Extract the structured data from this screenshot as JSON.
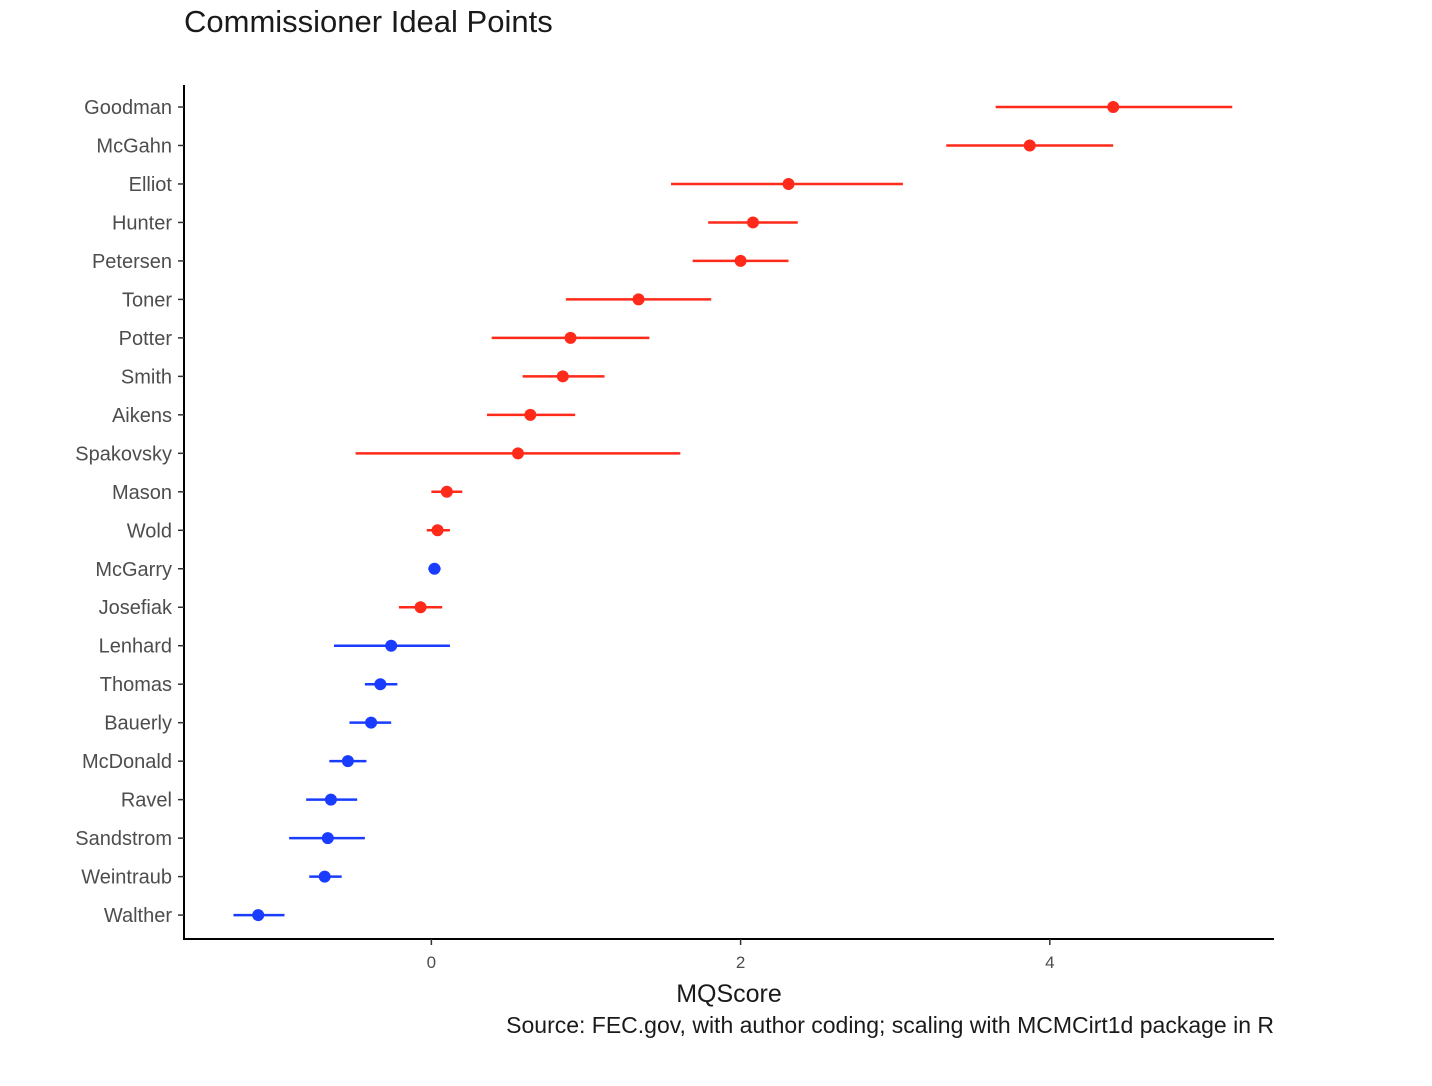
{
  "chart_data": {
    "type": "scatter",
    "title": "Commissioner Ideal Points",
    "xlabel": "MQScore",
    "ylabel": "",
    "caption": "Source: FEC.gov, with author coding; scaling with MCMCirt1d package in R",
    "xlim": [
      -1.6,
      5.45
    ],
    "xticks": [
      0,
      2,
      4
    ],
    "grid": false,
    "legend": "none",
    "colors": {
      "red": "#ff2a1a",
      "blue": "#1a3cff"
    },
    "points": [
      {
        "name": "Goodman",
        "mean": 4.41,
        "low": 3.65,
        "high": 5.18,
        "color": "red"
      },
      {
        "name": "McGahn",
        "mean": 3.87,
        "low": 3.33,
        "high": 4.41,
        "color": "red"
      },
      {
        "name": "Elliot",
        "mean": 2.31,
        "low": 1.55,
        "high": 3.05,
        "color": "red"
      },
      {
        "name": "Hunter",
        "mean": 2.08,
        "low": 1.79,
        "high": 2.37,
        "color": "red"
      },
      {
        "name": "Petersen",
        "mean": 2.0,
        "low": 1.69,
        "high": 2.31,
        "color": "red"
      },
      {
        "name": "Toner",
        "mean": 1.34,
        "low": 0.87,
        "high": 1.81,
        "color": "red"
      },
      {
        "name": "Potter",
        "mean": 0.9,
        "low": 0.39,
        "high": 1.41,
        "color": "red"
      },
      {
        "name": "Smith",
        "mean": 0.85,
        "low": 0.59,
        "high": 1.12,
        "color": "red"
      },
      {
        "name": "Aikens",
        "mean": 0.64,
        "low": 0.36,
        "high": 0.93,
        "color": "red"
      },
      {
        "name": "Spakovsky",
        "mean": 0.56,
        "low": -0.49,
        "high": 1.61,
        "color": "red"
      },
      {
        "name": "Mason",
        "mean": 0.1,
        "low": 0.0,
        "high": 0.2,
        "color": "red"
      },
      {
        "name": "Wold",
        "mean": 0.04,
        "low": -0.03,
        "high": 0.12,
        "color": "red"
      },
      {
        "name": "McGarry",
        "mean": 0.02,
        "low": -0.02,
        "high": 0.06,
        "color": "blue"
      },
      {
        "name": "Josefiak",
        "mean": -0.07,
        "low": -0.21,
        "high": 0.07,
        "color": "red"
      },
      {
        "name": "Lenhard",
        "mean": -0.26,
        "low": -0.63,
        "high": 0.12,
        "color": "blue"
      },
      {
        "name": "Thomas",
        "mean": -0.33,
        "low": -0.43,
        "high": -0.22,
        "color": "blue"
      },
      {
        "name": "Bauerly",
        "mean": -0.39,
        "low": -0.53,
        "high": -0.26,
        "color": "blue"
      },
      {
        "name": "McDonald",
        "mean": -0.54,
        "low": -0.66,
        "high": -0.42,
        "color": "blue"
      },
      {
        "name": "Ravel",
        "mean": -0.65,
        "low": -0.81,
        "high": -0.48,
        "color": "blue"
      },
      {
        "name": "Sandstrom",
        "mean": -0.67,
        "low": -0.92,
        "high": -0.43,
        "color": "blue"
      },
      {
        "name": "Weintraub",
        "mean": -0.69,
        "low": -0.79,
        "high": -0.58,
        "color": "blue"
      },
      {
        "name": "Walther",
        "mean": -1.12,
        "low": -1.28,
        "high": -0.95,
        "color": "blue"
      }
    ]
  }
}
